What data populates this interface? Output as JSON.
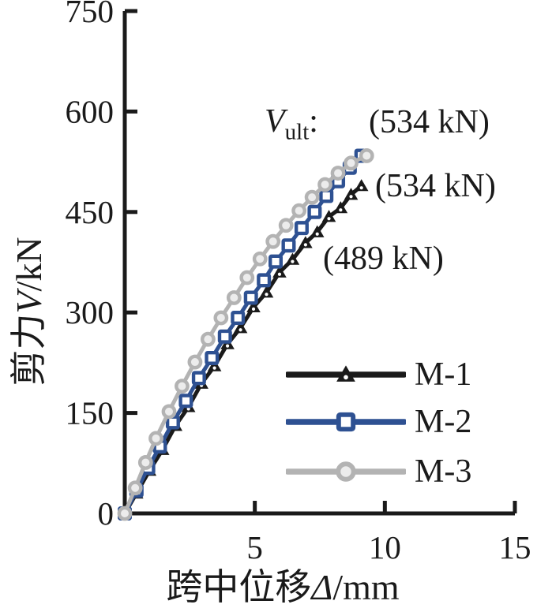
{
  "figure": {
    "background": "#ffffff",
    "axis_color": "#1a1a1a"
  },
  "chart_data": {
    "type": "line",
    "title": "",
    "xlabel": "跨中位移Δ/mm",
    "ylabel": "剪力V/kN",
    "xlabel_parts": {
      "prefix": "跨中位移",
      "symbol": "Δ",
      "suffix": "/mm"
    },
    "ylabel_parts": {
      "prefix": "剪力",
      "symbol": "V",
      "suffix": "/kN"
    },
    "xlim": [
      0,
      15
    ],
    "ylim": [
      0,
      750
    ],
    "x_ticks": [
      5,
      10,
      15
    ],
    "y_ticks": [
      0,
      150,
      300,
      450,
      600,
      750
    ],
    "grid": false,
    "legend_position": "lower right",
    "series": [
      {
        "name": "M-1",
        "color": "#1a1a1a",
        "marker": "triangle",
        "x": [
          0,
          0.45,
          0.95,
          1.45,
          1.95,
          2.45,
          2.95,
          3.45,
          3.95,
          4.45,
          4.95,
          5.45,
          5.95,
          6.45,
          6.95,
          7.4,
          7.85,
          8.3,
          8.7,
          9.1
        ],
        "y": [
          0,
          30,
          64,
          95,
          131,
          159,
          194,
          220,
          253,
          277,
          308,
          330,
          360,
          379,
          404,
          420,
          443,
          456,
          476,
          489
        ]
      },
      {
        "name": "M-2",
        "color": "#2e5192",
        "marker": "square",
        "x": [
          0,
          0.45,
          0.9,
          1.35,
          1.85,
          2.35,
          2.85,
          3.35,
          3.85,
          4.35,
          4.85,
          5.35,
          5.8,
          6.3,
          6.8,
          7.3,
          7.75,
          8.2,
          8.65,
          9.1
        ],
        "y": [
          0,
          34,
          68,
          100,
          136,
          168,
          202,
          232,
          264,
          292,
          322,
          348,
          376,
          400,
          426,
          450,
          474,
          496,
          516,
          534
        ]
      },
      {
        "name": "M-3",
        "color": "#b3b3b3",
        "marker": "circle",
        "x": [
          0,
          0.4,
          0.8,
          1.2,
          1.7,
          2.2,
          2.7,
          3.2,
          3.7,
          4.2,
          4.7,
          5.2,
          5.7,
          6.2,
          6.7,
          7.2,
          7.7,
          8.2,
          8.7,
          9.3
        ],
        "y": [
          0,
          38,
          76,
          112,
          152,
          190,
          226,
          260,
          292,
          322,
          352,
          380,
          406,
          430,
          452,
          472,
          491,
          508,
          523,
          534
        ]
      }
    ]
  },
  "annotations": {
    "vult": {
      "symbol": "V",
      "subscript": "ult",
      "colon": ":"
    },
    "values": [
      {
        "text": "(534 kN)"
      },
      {
        "text": "(534 kN)"
      },
      {
        "text": "(489 kN)"
      }
    ]
  }
}
